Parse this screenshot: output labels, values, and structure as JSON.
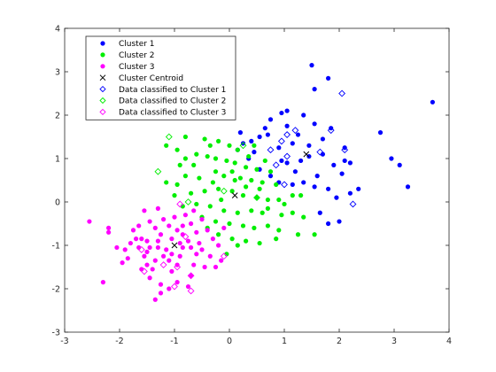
{
  "chart_data": {
    "type": "scatter",
    "title": "",
    "xlabel": "",
    "ylabel": "",
    "xlim": [
      -3,
      4
    ],
    "ylim": [
      -3,
      4
    ],
    "x_ticks": [
      "-3",
      "-2",
      "-1",
      "0",
      "1",
      "2",
      "3",
      "4"
    ],
    "y_ticks": [
      "-3",
      "-2",
      "-1",
      "0",
      "1",
      "2",
      "3",
      "4"
    ],
    "grid": false,
    "legend_position": "top-left",
    "series": [
      {
        "name": "Cluster 1",
        "marker": "dot",
        "color": "#0000ff",
        "points": [
          [
            3.7,
            2.3
          ],
          [
            2.75,
            1.6
          ],
          [
            2.95,
            1.0
          ],
          [
            3.1,
            0.85
          ],
          [
            3.25,
            0.35
          ],
          [
            1.5,
            3.15
          ],
          [
            1.8,
            2.85
          ],
          [
            1.55,
            2.6
          ],
          [
            1.05,
            2.1
          ],
          [
            0.95,
            2.05
          ],
          [
            1.35,
            2.0
          ],
          [
            1.55,
            1.8
          ],
          [
            1.85,
            1.7
          ],
          [
            2.1,
            1.25
          ],
          [
            2.2,
            0.9
          ],
          [
            2.35,
            0.3
          ],
          [
            2.2,
            0.2
          ],
          [
            1.95,
            0.1
          ],
          [
            2.0,
            -0.45
          ],
          [
            1.8,
            -0.5
          ],
          [
            1.65,
            -0.25
          ],
          [
            1.55,
            0.35
          ],
          [
            1.35,
            0.45
          ],
          [
            1.2,
            0.7
          ],
          [
            1.05,
            0.9
          ],
          [
            0.9,
            1.25
          ],
          [
            0.7,
            1.55
          ],
          [
            0.55,
            1.5
          ],
          [
            0.4,
            1.4
          ],
          [
            0.25,
            1.35
          ],
          [
            0.15,
            1.2
          ],
          [
            0.35,
            1.0
          ],
          [
            0.55,
            0.75
          ],
          [
            0.75,
            0.6
          ],
          [
            0.9,
            0.45
          ],
          [
            1.25,
            1.55
          ],
          [
            1.45,
            1.3
          ],
          [
            1.7,
            1.1
          ],
          [
            1.9,
            0.85
          ],
          [
            2.05,
            0.65
          ],
          [
            0.75,
            1.9
          ],
          [
            0.65,
            1.7
          ],
          [
            1.15,
            1.35
          ],
          [
            1.3,
            0.95
          ],
          [
            1.6,
            0.6
          ],
          [
            1.8,
            0.3
          ],
          [
            0.2,
            1.6
          ],
          [
            0.45,
            1.15
          ],
          [
            1.45,
            1.05
          ],
          [
            1.7,
            1.45
          ],
          [
            0.95,
            0.95
          ],
          [
            1.15,
            0.4
          ],
          [
            2.1,
            0.95
          ],
          [
            1.05,
            1.75
          ]
        ]
      },
      {
        "name": "Cluster 2",
        "marker": "dot",
        "color": "#00ee00",
        "points": [
          [
            -0.8,
            1.5
          ],
          [
            -0.45,
            1.45
          ],
          [
            -0.35,
            1.3
          ],
          [
            -0.2,
            1.4
          ],
          [
            0.0,
            1.3
          ],
          [
            0.15,
            1.2
          ],
          [
            -1.15,
            1.3
          ],
          [
            -0.95,
            1.2
          ],
          [
            -0.8,
            1.0
          ],
          [
            -0.6,
            1.1
          ],
          [
            -0.4,
            1.05
          ],
          [
            -0.25,
            1.0
          ],
          [
            -0.05,
            0.95
          ],
          [
            0.1,
            0.9
          ],
          [
            0.3,
            0.8
          ],
          [
            0.5,
            0.75
          ],
          [
            0.75,
            0.7
          ],
          [
            -0.1,
            0.6
          ],
          [
            0.2,
            0.55
          ],
          [
            0.4,
            0.5
          ],
          [
            0.6,
            0.45
          ],
          [
            0.85,
            0.4
          ],
          [
            -0.3,
            0.45
          ],
          [
            -0.55,
            0.55
          ],
          [
            -0.8,
            0.6
          ],
          [
            -0.95,
            0.4
          ],
          [
            -1.15,
            0.45
          ],
          [
            -1.0,
            0.15
          ],
          [
            -0.7,
            0.2
          ],
          [
            -0.45,
            0.25
          ],
          [
            -0.2,
            0.3
          ],
          [
            0.05,
            0.25
          ],
          [
            0.25,
            0.15
          ],
          [
            0.5,
            0.1
          ],
          [
            0.7,
            0.05
          ],
          [
            0.9,
            0.05
          ],
          [
            1.15,
            0.15
          ],
          [
            1.3,
            0.15
          ],
          [
            0.95,
            -0.3
          ],
          [
            1.15,
            -0.25
          ],
          [
            1.35,
            -0.35
          ],
          [
            0.7,
            -0.15
          ],
          [
            0.4,
            -0.2
          ],
          [
            0.15,
            -0.25
          ],
          [
            -0.1,
            -0.2
          ],
          [
            -0.35,
            -0.1
          ],
          [
            -0.6,
            -0.05
          ],
          [
            -0.85,
            -0.1
          ],
          [
            -0.5,
            -0.35
          ],
          [
            -0.25,
            -0.45
          ],
          [
            0.0,
            -0.5
          ],
          [
            0.25,
            -0.55
          ],
          [
            0.45,
            -0.6
          ],
          [
            0.7,
            -0.55
          ],
          [
            0.9,
            -0.65
          ],
          [
            -0.2,
            -0.75
          ],
          [
            0.05,
            -0.85
          ],
          [
            0.3,
            -0.9
          ],
          [
            0.55,
            -0.95
          ],
          [
            0.85,
            -0.85
          ],
          [
            1.25,
            -0.75
          ],
          [
            1.55,
            -0.75
          ],
          [
            0.15,
            -1.0
          ],
          [
            -0.05,
            -1.2
          ],
          [
            0.3,
            0.35
          ],
          [
            0.55,
            0.3
          ],
          [
            -0.15,
            0.05
          ],
          [
            0.1,
            0.5
          ],
          [
            0.35,
            1.05
          ],
          [
            0.65,
            0.95
          ],
          [
            -0.65,
            0.85
          ],
          [
            -0.9,
            0.85
          ],
          [
            -0.4,
            -0.6
          ],
          [
            0.6,
            -0.25
          ],
          [
            1.0,
            -0.05
          ],
          [
            0.05,
            0.7
          ],
          [
            -0.25,
            0.7
          ],
          [
            0.45,
            1.3
          ]
        ]
      },
      {
        "name": "Cluster 3",
        "marker": "dot",
        "color": "#ff00ff",
        "points": [
          [
            -2.55,
            -0.45
          ],
          [
            -2.2,
            -0.6
          ],
          [
            -2.2,
            -0.7
          ],
          [
            -2.05,
            -1.05
          ],
          [
            -1.9,
            -1.1
          ],
          [
            -1.85,
            -1.3
          ],
          [
            -2.3,
            -1.85
          ],
          [
            -1.7,
            -0.85
          ],
          [
            -1.6,
            -0.85
          ],
          [
            -1.5,
            -0.9
          ],
          [
            -1.65,
            -1.05
          ],
          [
            -1.55,
            -1.25
          ],
          [
            -1.6,
            -1.55
          ],
          [
            -1.5,
            -1.45
          ],
          [
            -1.45,
            -1.75
          ],
          [
            -1.35,
            -1.35
          ],
          [
            -1.3,
            -1.05
          ],
          [
            -1.25,
            -0.75
          ],
          [
            -1.35,
            -0.6
          ],
          [
            -1.45,
            -0.45
          ],
          [
            -1.55,
            -0.2
          ],
          [
            -1.3,
            -0.15
          ],
          [
            -1.2,
            -0.4
          ],
          [
            -1.1,
            -0.55
          ],
          [
            -1.05,
            -0.85
          ],
          [
            -1.15,
            -1.1
          ],
          [
            -1.1,
            -1.35
          ],
          [
            -1.05,
            -1.6
          ],
          [
            -0.95,
            -1.45
          ],
          [
            -0.9,
            -1.25
          ],
          [
            -0.85,
            -1.05
          ],
          [
            -0.85,
            -0.75
          ],
          [
            -0.85,
            -0.55
          ],
          [
            -0.8,
            -0.3
          ],
          [
            -0.7,
            -0.5
          ],
          [
            -0.6,
            -0.7
          ],
          [
            -0.55,
            -0.95
          ],
          [
            -0.6,
            -1.2
          ],
          [
            -0.65,
            -1.45
          ],
          [
            -0.7,
            -1.7
          ],
          [
            -0.75,
            -1.95
          ],
          [
            -0.95,
            -1.85
          ],
          [
            -1.1,
            -2.0
          ],
          [
            -1.25,
            -2.1
          ],
          [
            -1.35,
            -2.25
          ],
          [
            -1.25,
            -1.9
          ],
          [
            -0.5,
            -0.4
          ],
          [
            -0.4,
            -0.65
          ],
          [
            -0.3,
            -0.85
          ],
          [
            -0.2,
            -1.0
          ],
          [
            -0.35,
            -1.25
          ],
          [
            -0.45,
            -1.5
          ],
          [
            -0.25,
            -1.5
          ],
          [
            -0.15,
            -1.35
          ],
          [
            -0.1,
            -0.6
          ],
          [
            -1.65,
            -0.55
          ],
          [
            -1.75,
            -0.65
          ],
          [
            -1.4,
            -1.55
          ],
          [
            -1.0,
            -0.35
          ],
          [
            -0.95,
            -0.65
          ],
          [
            -1.2,
            -1.25
          ],
          [
            -0.75,
            -0.9
          ],
          [
            -0.5,
            -1.1
          ],
          [
            -1.5,
            -1.15
          ],
          [
            -1.8,
            -0.95
          ],
          [
            -1.95,
            -1.4
          ],
          [
            -0.65,
            -0.2
          ],
          [
            -1.05,
            -1.2
          ],
          [
            -0.9,
            -0.95
          ],
          [
            -1.3,
            -0.9
          ],
          [
            -1.45,
            -1.05
          ],
          [
            -0.7,
            -1.05
          ]
        ]
      },
      {
        "name": "Cluster Centroid",
        "marker": "x",
        "color": "#000000",
        "points": [
          [
            1.4,
            1.1
          ],
          [
            0.1,
            0.15
          ],
          [
            -1.0,
            -1.0
          ]
        ]
      },
      {
        "name": "Data classified to Cluster 1",
        "marker": "diamond",
        "color": "#0000ff",
        "points": [
          [
            2.05,
            2.5
          ],
          [
            1.85,
            1.65
          ],
          [
            1.2,
            1.65
          ],
          [
            1.05,
            1.55
          ],
          [
            0.95,
            1.4
          ],
          [
            0.75,
            1.2
          ],
          [
            1.05,
            1.05
          ],
          [
            1.65,
            1.15
          ],
          [
            2.1,
            1.2
          ],
          [
            1.0,
            0.4
          ],
          [
            2.25,
            -0.05
          ],
          [
            0.85,
            0.85
          ]
        ]
      },
      {
        "name": "Data classified to Cluster 2",
        "marker": "diamond",
        "color": "#00ee00",
        "points": [
          [
            -1.1,
            1.5
          ],
          [
            -1.3,
            0.7
          ],
          [
            -0.1,
            0.25
          ],
          [
            0.5,
            0.1
          ],
          [
            0.25,
            1.3
          ],
          [
            -0.75,
            0.0
          ]
        ]
      },
      {
        "name": "Data classified to Cluster 3",
        "marker": "diamond",
        "color": "#ff00ff",
        "points": [
          [
            -0.9,
            -0.05
          ],
          [
            -0.8,
            -0.8
          ],
          [
            -1.6,
            -1.1
          ],
          [
            -1.2,
            -1.45
          ],
          [
            -1.55,
            -1.6
          ],
          [
            -0.95,
            -1.5
          ],
          [
            -0.7,
            -1.7
          ],
          [
            -1.0,
            -1.95
          ],
          [
            -0.7,
            -2.05
          ],
          [
            -0.1,
            -1.25
          ]
        ]
      }
    ]
  }
}
